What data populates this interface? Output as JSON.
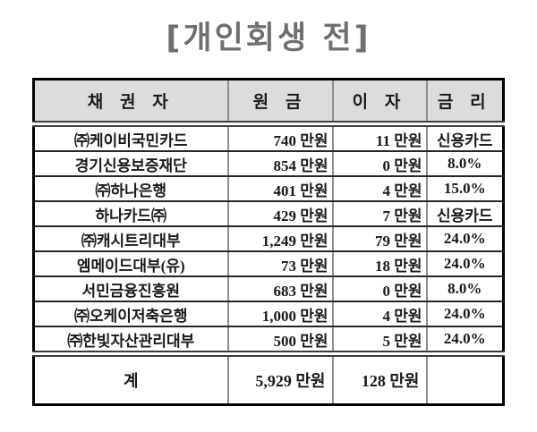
{
  "title": "[개인회생 전]",
  "colors": {
    "title_text": "#6f6f6f",
    "header_background": "#dcdcdc",
    "outer_border": "#000000",
    "inner_vertical_lines": "#8f8f8f",
    "row_lines": "#262626"
  },
  "table": {
    "headers": {
      "creditor": "채 권 자",
      "principal": "원 금",
      "interest": "이 자",
      "rate": "금 리"
    },
    "rows": [
      {
        "creditor": "㈜케이비국민카드",
        "principal": "740 만원",
        "interest": "11 만원",
        "rate": "신용카드"
      },
      {
        "creditor": "경기신용보증재단",
        "principal": "854 만원",
        "interest": "0 만원",
        "rate": "8.0%"
      },
      {
        "creditor": "㈜하나은행",
        "principal": "401 만원",
        "interest": "4 만원",
        "rate": "15.0%"
      },
      {
        "creditor": "하나카드㈜",
        "principal": "429 만원",
        "interest": "7 만원",
        "rate": "신용카드"
      },
      {
        "creditor": "㈜캐시트리대부",
        "principal": "1,249 만원",
        "interest": "79 만원",
        "rate": "24.0%"
      },
      {
        "creditor": "엠메이드대부(유)",
        "principal": "73 만원",
        "interest": "18 만원",
        "rate": "24.0%"
      },
      {
        "creditor": "서민금융진흥원",
        "principal": "683 만원",
        "interest": "0 만원",
        "rate": "8.0%"
      },
      {
        "creditor": "㈜오케이저축은행",
        "principal": "1,000 만원",
        "interest": "4 만원",
        "rate": "24.0%"
      },
      {
        "creditor": "㈜한빛자산관리대부",
        "principal": "500 만원",
        "interest": "5 만원",
        "rate": "24.0%"
      }
    ],
    "total": {
      "creditor": "계",
      "principal": "5,929 만원",
      "interest": "128 만원",
      "rate": ""
    }
  }
}
